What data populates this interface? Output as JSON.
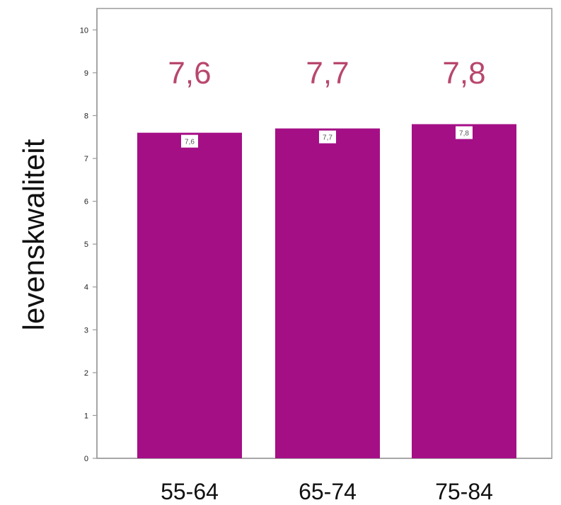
{
  "chart_data": {
    "type": "bar",
    "categories": [
      "55-64",
      "65-74",
      "75-84"
    ],
    "values": [
      7.6,
      7.7,
      7.8
    ],
    "value_labels": [
      "7,6",
      "7,7",
      "7,8"
    ],
    "inner_labels": [
      "7,6",
      "7,7",
      "7,8"
    ],
    "ylabel": "levenskwaliteit",
    "ylim": [
      0,
      10.5
    ],
    "yticks": [
      0,
      1,
      2,
      3,
      4,
      5,
      6,
      7,
      8,
      9,
      10
    ],
    "grid": false,
    "colors": {
      "bar": "#a50f86",
      "value_label": "#b8476e",
      "frame": "#9a9a9a"
    }
  }
}
